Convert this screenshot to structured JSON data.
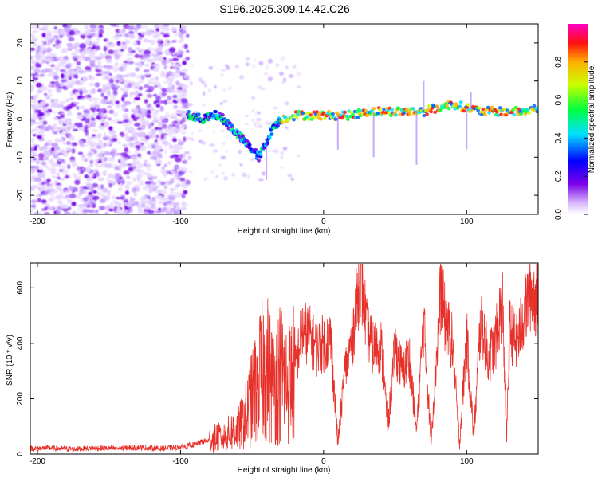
{
  "title": "S196.2025.309.14.42.C26",
  "chart_data": [
    {
      "type": "heatmap",
      "name": "spectrogram",
      "xlabel": "Height of straight line (km)",
      "ylabel": "Frequency (Hz)",
      "xlim": [
        -205,
        150
      ],
      "ylim": [
        -25,
        25
      ],
      "xticks": [
        -200,
        -100,
        0,
        100
      ],
      "yticks": [
        -20,
        -10,
        0,
        10,
        20
      ],
      "colorbar": {
        "label": "Normalized spectral amplitude",
        "range": [
          0,
          1
        ],
        "ticks": [
          0.0,
          0.2,
          0.4,
          0.6,
          0.8
        ],
        "tick_labels": [
          "0.0",
          "0.2",
          "0.4",
          "0.6",
          "0.8"
        ]
      },
      "signal_track": {
        "x": [
          -95,
          -85,
          -75,
          -70,
          -65,
          -60,
          -55,
          -50,
          -45,
          -40,
          -35,
          -30,
          -20,
          -10,
          0,
          10,
          20,
          30,
          40,
          50,
          60,
          70,
          80,
          90,
          100,
          110,
          120,
          130,
          140,
          150
        ],
        "y": [
          1,
          0,
          1,
          0,
          -2,
          -4,
          -6,
          -8,
          -10,
          -6,
          -2,
          0,
          1,
          1,
          1,
          1,
          1,
          2,
          2,
          2,
          2,
          2,
          3,
          4,
          3,
          2,
          2,
          2,
          2,
          3
        ]
      }
    },
    {
      "type": "line",
      "name": "snr",
      "xlabel": "Height of straight line (km)",
      "ylabel": "SNR (10 * v/v)",
      "xlim": [
        -205,
        150
      ],
      "ylim": [
        0,
        690
      ],
      "xticks": [
        -200,
        -100,
        0,
        100
      ],
      "yticks": [
        0,
        200,
        400,
        600
      ],
      "color": "#e8302a",
      "x": [
        -205,
        -190,
        -175,
        -160,
        -145,
        -130,
        -115,
        -100,
        -95,
        -90,
        -85,
        -80,
        -75,
        -70,
        -65,
        -60,
        -55,
        -50,
        -45,
        -40,
        -35,
        -30,
        -25,
        -20,
        -15,
        -10,
        -5,
        0,
        5,
        10,
        15,
        20,
        25,
        28,
        30,
        35,
        40,
        45,
        50,
        55,
        60,
        65,
        70,
        75,
        80,
        82,
        85,
        90,
        95,
        100,
        105,
        110,
        115,
        120,
        125,
        128,
        130,
        135,
        140,
        145,
        150
      ],
      "y": [
        20,
        22,
        18,
        22,
        20,
        24,
        20,
        25,
        30,
        35,
        45,
        50,
        60,
        60,
        80,
        90,
        130,
        200,
        280,
        320,
        250,
        300,
        250,
        300,
        450,
        430,
        380,
        400,
        420,
        40,
        300,
        420,
        620,
        580,
        450,
        380,
        400,
        100,
        380,
        300,
        350,
        80,
        480,
        50,
        430,
        600,
        480,
        400,
        40,
        420,
        60,
        500,
        340,
        400,
        560,
        60,
        450,
        400,
        500,
        590,
        550
      ]
    }
  ]
}
